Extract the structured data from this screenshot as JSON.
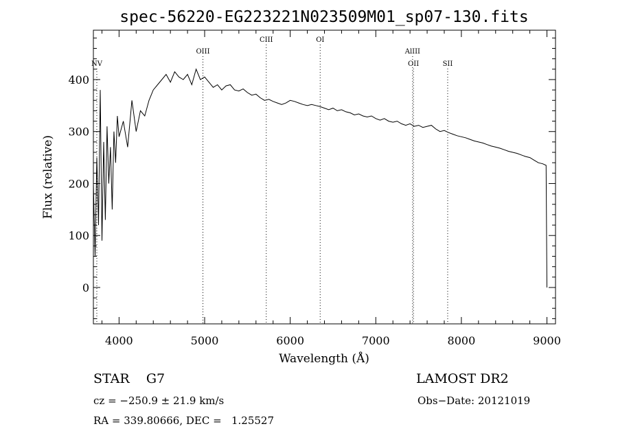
{
  "chart_data": {
    "type": "line",
    "title": "spec-56220-EG223221N023509M01_sp07-130.fits",
    "xlabel": "Wavelength (Å)",
    "ylabel": "Flux (relative)",
    "xlim": [
      3700,
      9100
    ],
    "ylim": [
      -70,
      495
    ],
    "x_ticks": [
      4000,
      5000,
      6000,
      7000,
      8000,
      9000
    ],
    "y_ticks": [
      0,
      100,
      200,
      300,
      400
    ],
    "grid": false,
    "legend": "none",
    "series": [
      {
        "x": [
          3700,
          3720,
          3740,
          3760,
          3780,
          3800,
          3820,
          3840,
          3860,
          3880,
          3900,
          3920,
          3940,
          3960,
          3980,
          4000,
          4050,
          4100,
          4150,
          4200,
          4250,
          4300,
          4350,
          4400,
          4450,
          4500,
          4550,
          4600,
          4650,
          4700,
          4750,
          4800,
          4850,
          4900,
          4950,
          5000,
          5050,
          5100,
          5150,
          5200,
          5250,
          5300,
          5350,
          5400,
          5450,
          5500,
          5550,
          5600,
          5650,
          5700,
          5750,
          5800,
          5850,
          5900,
          5950,
          6000,
          6050,
          6100,
          6150,
          6200,
          6250,
          6300,
          6350,
          6400,
          6450,
          6500,
          6550,
          6600,
          6650,
          6700,
          6750,
          6800,
          6850,
          6900,
          6950,
          7000,
          7050,
          7100,
          7150,
          7200,
          7250,
          7300,
          7350,
          7400,
          7450,
          7500,
          7550,
          7600,
          7650,
          7700,
          7750,
          7800,
          7850,
          7900,
          7950,
          8000,
          8050,
          8100,
          8150,
          8200,
          8250,
          8300,
          8350,
          8400,
          8450,
          8500,
          8550,
          8600,
          8650,
          8700,
          8750,
          8800,
          8850,
          8900,
          8950,
          8990,
          9000
        ],
        "y": [
          200,
          60,
          250,
          120,
          380,
          90,
          280,
          130,
          310,
          200,
          270,
          150,
          300,
          240,
          330,
          290,
          320,
          270,
          360,
          300,
          340,
          330,
          360,
          380,
          390,
          400,
          410,
          395,
          415,
          405,
          400,
          410,
          390,
          420,
          400,
          405,
          395,
          385,
          390,
          380,
          388,
          390,
          380,
          378,
          382,
          375,
          370,
          372,
          365,
          360,
          362,
          358,
          355,
          352,
          355,
          360,
          358,
          355,
          352,
          350,
          352,
          350,
          348,
          345,
          342,
          345,
          340,
          342,
          338,
          336,
          332,
          334,
          330,
          328,
          330,
          325,
          322,
          325,
          320,
          318,
          320,
          315,
          312,
          315,
          310,
          312,
          308,
          310,
          312,
          305,
          300,
          302,
          298,
          295,
          292,
          290,
          288,
          285,
          282,
          280,
          278,
          275,
          272,
          270,
          268,
          265,
          262,
          260,
          258,
          255,
          252,
          250,
          245,
          240,
          238,
          235,
          0
        ]
      }
    ],
    "lines": [
      {
        "label": "NV",
        "x": 3740,
        "label_row": 1
      },
      {
        "label": "OIII",
        "x": 4980,
        "label_row": 0
      },
      {
        "label": "CIII",
        "x": 5720,
        "label_row": -1
      },
      {
        "label": "OI",
        "x": 6350,
        "label_row": -1
      },
      {
        "label": "AlIII",
        "x": 7430,
        "label_row": 0
      },
      {
        "label": "OII",
        "x": 7440,
        "label_row": 1
      },
      {
        "label": "SII",
        "x": 7840,
        "label_row": 1
      }
    ]
  },
  "info": {
    "class": "STAR    G7",
    "survey": "LAMOST DR2",
    "cz": "cz = −250.9 ± 21.9 km/s",
    "obs_date": "Obs−Date: 20121019",
    "coords": "RA = 339.80666, DEC =   1.25527"
  }
}
